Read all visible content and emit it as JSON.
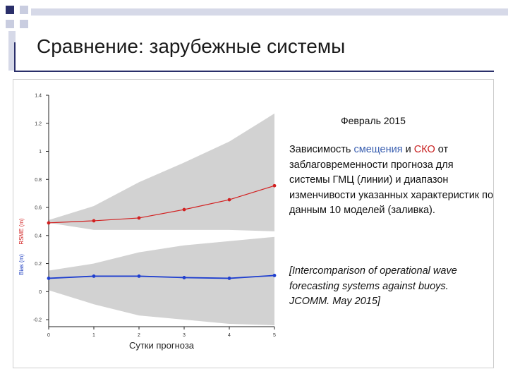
{
  "slide": {
    "title": "Сравнение: зарубежные системы",
    "month": "Февраль 2015",
    "description": {
      "part1": "Зависимость ",
      "bias_word": "смещения",
      "part2": " и ",
      "rmse_word": "СКО",
      "part3": " от заблаговременности прогноза для системы ГМЦ (линии) и диапазон изменчивости указанных характеристик по данным 10 моделей (заливка)."
    },
    "reference": "[Intercomparison of operational wave forecasting systems against buoys. JCOMM. May 2015]"
  },
  "colors": {
    "rmse_line": "#d22020",
    "bias_line": "#1f3fcf",
    "band_fill": "#d2d2d2"
  },
  "chart_data": {
    "type": "line",
    "xlabel": "Сутки прогноза",
    "ylabel_rmse": "RSME (m)",
    "ylabel_bias": "Bias (m)",
    "xlim": [
      0,
      5
    ],
    "ylim": [
      -0.25,
      1.4
    ],
    "x_ticks": [
      0,
      1,
      2,
      3,
      4,
      5
    ],
    "y_ticks": [
      -0.2,
      0,
      0.2,
      0.4,
      0.6,
      0.8,
      1,
      1.2,
      1.4
    ],
    "grid": false,
    "x": [
      0,
      1,
      2,
      3,
      4,
      5
    ],
    "series": [
      {
        "key": "rmse",
        "color": "#d22020",
        "values": [
          0.49,
          0.505,
          0.525,
          0.585,
          0.655,
          0.755
        ]
      },
      {
        "key": "bias",
        "color": "#1f3fcf",
        "values": [
          0.095,
          0.11,
          0.11,
          0.1,
          0.095,
          0.115
        ]
      }
    ],
    "bands": [
      {
        "key": "rmse_range",
        "lower": [
          0.49,
          0.44,
          0.44,
          0.44,
          0.44,
          0.43
        ],
        "upper": [
          0.51,
          0.61,
          0.78,
          0.92,
          1.07,
          1.27
        ]
      },
      {
        "key": "bias_range",
        "lower": [
          0.01,
          -0.09,
          -0.17,
          -0.2,
          -0.23,
          -0.24
        ],
        "upper": [
          0.15,
          0.2,
          0.28,
          0.33,
          0.36,
          0.39
        ]
      }
    ]
  }
}
